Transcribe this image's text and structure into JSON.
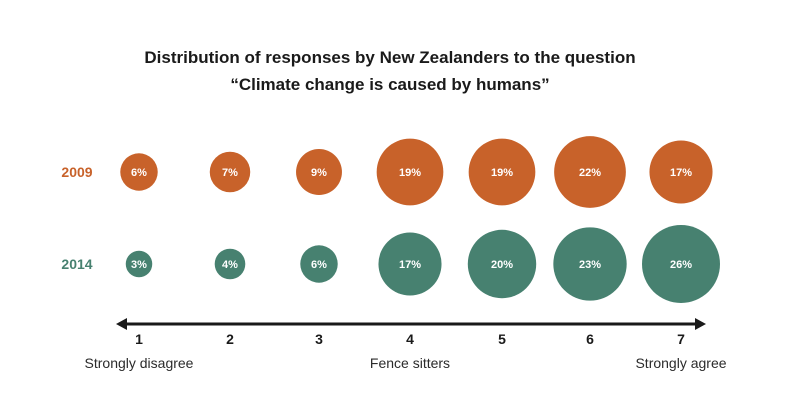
{
  "chart_data": {
    "type": "bubble",
    "title_line1": "Distribution of responses by New Zealanders to the question",
    "title_line2": "“Climate change is caused by humans”",
    "categories": [
      "1",
      "2",
      "3",
      "4",
      "5",
      "6",
      "7"
    ],
    "series": [
      {
        "name": "2009",
        "color": "#c8622a",
        "values": [
          6,
          7,
          9,
          19,
          19,
          22,
          17
        ],
        "labels": [
          "6%",
          "7%",
          "9%",
          "19%",
          "19%",
          "22%",
          "17%"
        ]
      },
      {
        "name": "2014",
        "color": "#478170",
        "values": [
          3,
          4,
          6,
          17,
          20,
          23,
          26
        ],
        "labels": [
          "3%",
          "4%",
          "6%",
          "17%",
          "20%",
          "23%",
          "26%"
        ]
      }
    ],
    "scale_anchors": [
      {
        "category": "1",
        "text": "Strongly disagree"
      },
      {
        "category": "4",
        "text": "Fence sitters"
      },
      {
        "category": "7",
        "text": "Strongly agree"
      }
    ]
  }
}
